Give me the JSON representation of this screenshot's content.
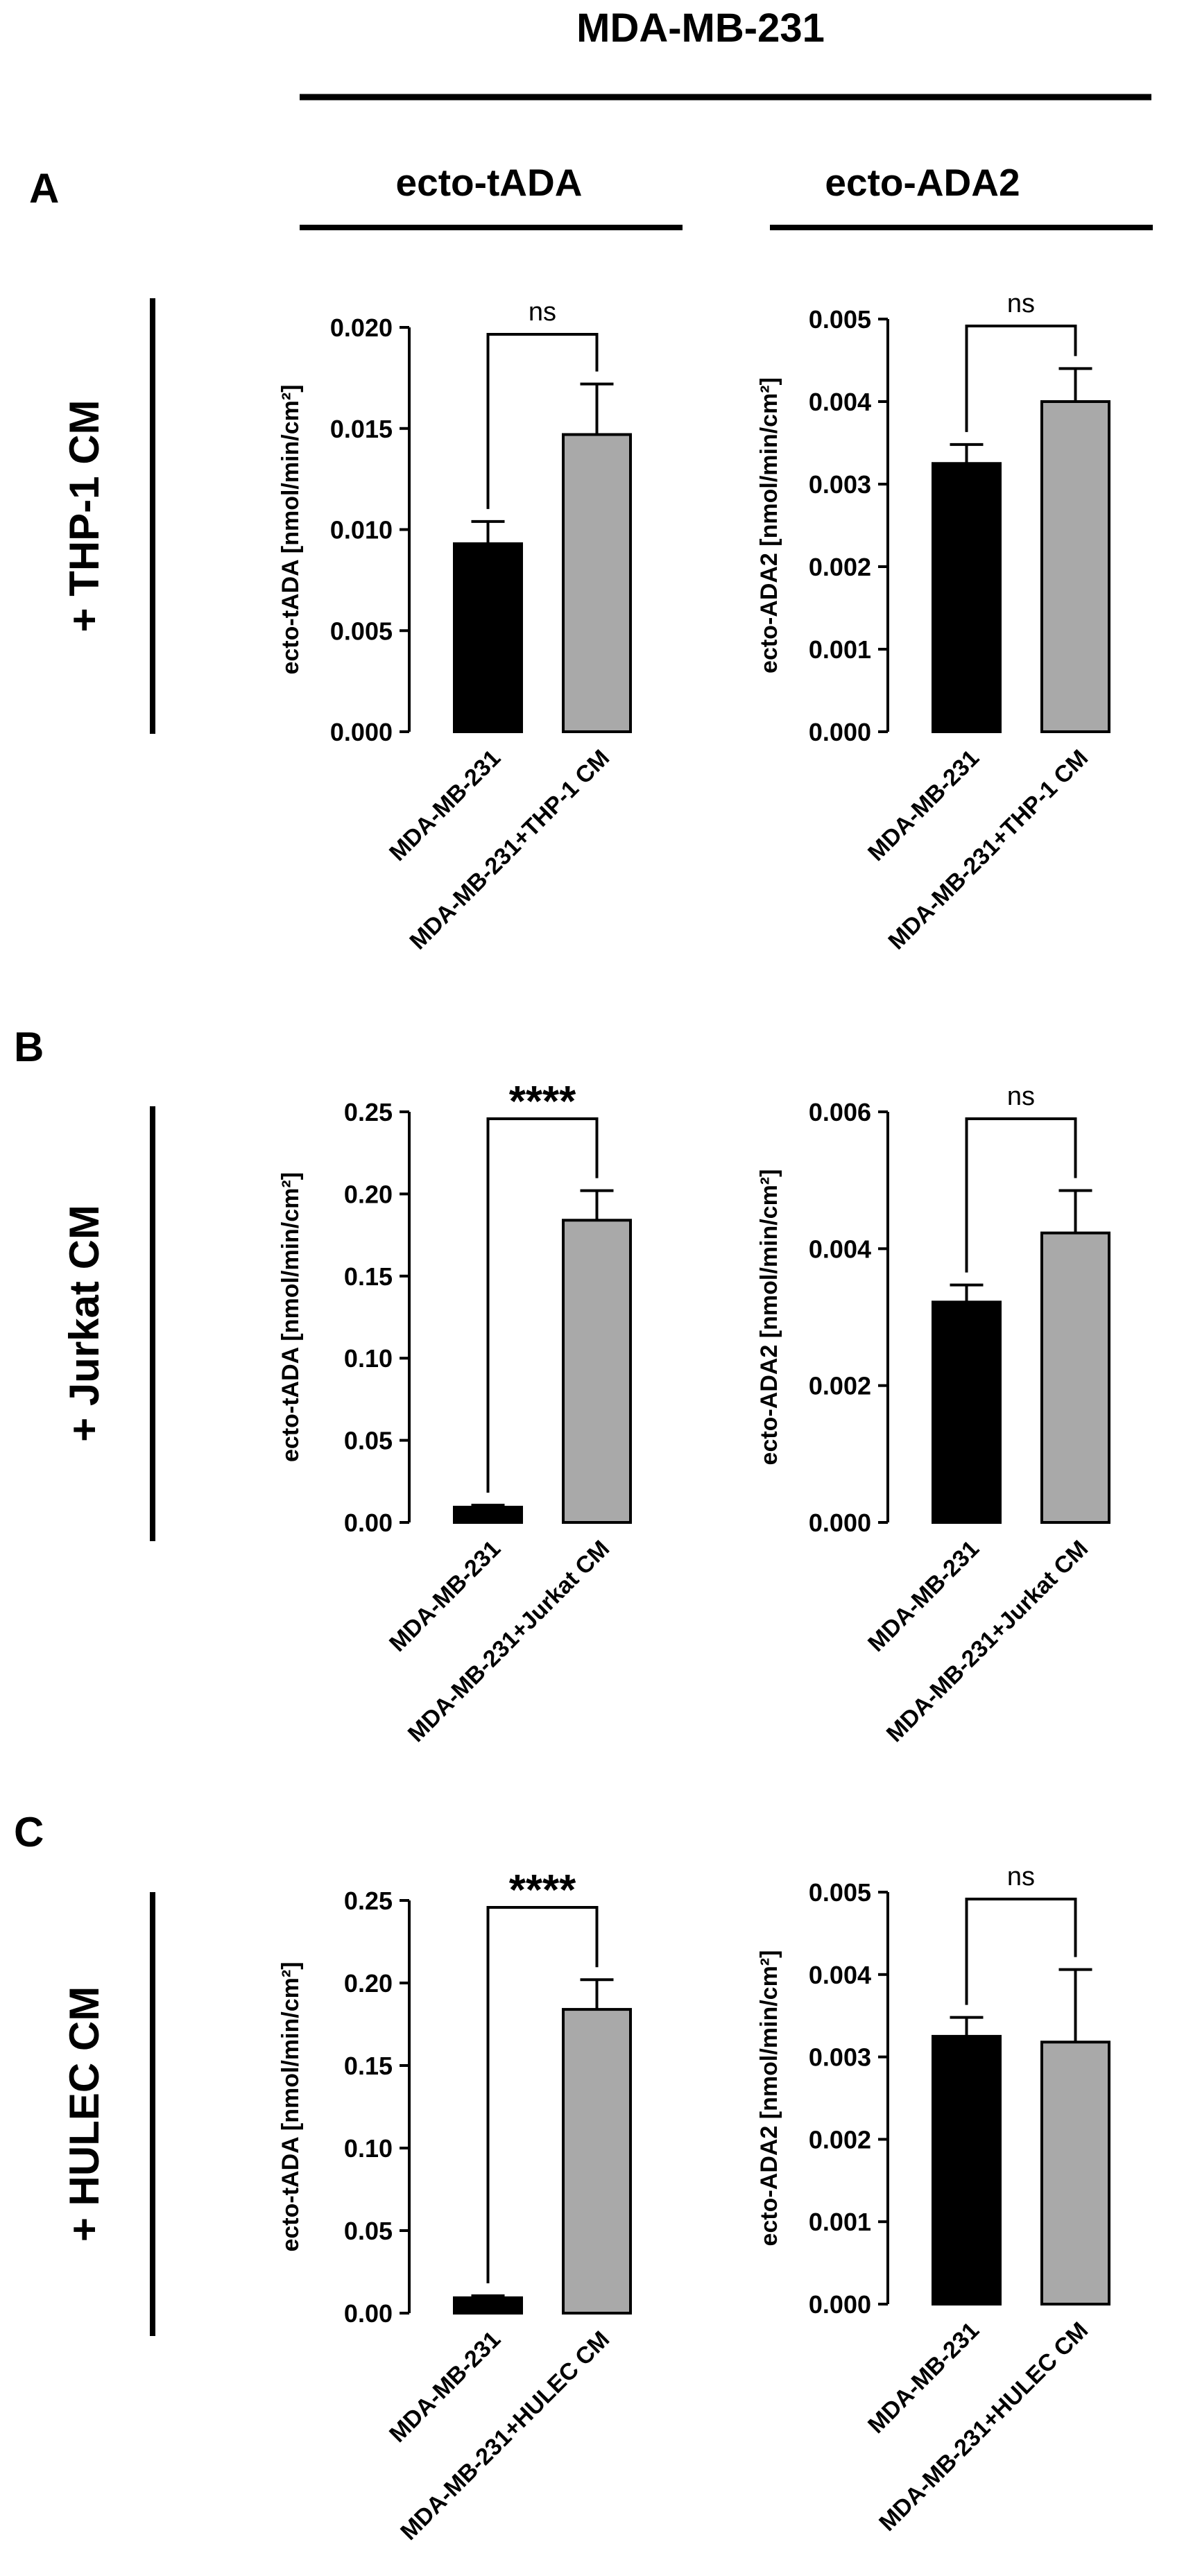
{
  "header": {
    "cell_line": "MDA-MB-231",
    "columns": [
      "ecto-tADA",
      "ecto-ADA2"
    ]
  },
  "rows": [
    {
      "letter": "A",
      "label": "+ THP-1 CM"
    },
    {
      "letter": "B",
      "label": "+ Jurkat CM"
    },
    {
      "letter": "C",
      "label": "+ HULEC CM"
    }
  ],
  "colors": {
    "control_bar": "#000000",
    "treated_bar": "#a9a9a9",
    "line": "#000000"
  },
  "chart_data": [
    {
      "type": "bar",
      "panel": "A",
      "column": "ecto-tADA",
      "ylabel": "ecto-tADA [nmol/min/cm²]",
      "ylim": [
        0,
        0.02
      ],
      "yticks": [
        "0.000",
        "0.005",
        "0.010",
        "0.015",
        "0.020"
      ],
      "categories": [
        "MDA-MB-231",
        "MDA-MB-231+THP-1 CM"
      ],
      "values": [
        0.0093,
        0.0147
      ],
      "errors": [
        0.0011,
        0.0025
      ],
      "significance": "ns"
    },
    {
      "type": "bar",
      "panel": "A",
      "column": "ecto-ADA2",
      "ylabel": "ecto-ADA2 [nmol/min/cm²]",
      "ylim": [
        0,
        0.005
      ],
      "yticks": [
        "0.000",
        "0.001",
        "0.002",
        "0.003",
        "0.004",
        "0.005"
      ],
      "categories": [
        "MDA-MB-231",
        "MDA-MB-231+THP-1 CM"
      ],
      "values": [
        0.00325,
        0.004
      ],
      "errors": [
        0.00023,
        0.0004
      ],
      "significance": "ns"
    },
    {
      "type": "bar",
      "panel": "B",
      "column": "ecto-tADA",
      "ylabel": "ecto-tADA [nmol/min/cm²]",
      "ylim": [
        0,
        0.25
      ],
      "yticks": [
        "0.00",
        "0.05",
        "0.10",
        "0.15",
        "0.20",
        "0.25"
      ],
      "categories": [
        "MDA-MB-231",
        "MDA-MB-231+Jurkat CM"
      ],
      "values": [
        0.0093,
        0.184
      ],
      "errors": [
        0.0012,
        0.018
      ],
      "significance": "****"
    },
    {
      "type": "bar",
      "panel": "B",
      "column": "ecto-ADA2",
      "ylabel": "ecto-ADA2 [nmol/min/cm²]",
      "ylim": [
        0,
        0.006
      ],
      "yticks": [
        "0.000",
        "0.002",
        "0.004",
        "0.006"
      ],
      "categories": [
        "MDA-MB-231",
        "MDA-MB-231+Jurkat CM"
      ],
      "values": [
        0.00322,
        0.00423
      ],
      "errors": [
        0.00025,
        0.00062
      ],
      "significance": "ns"
    },
    {
      "type": "bar",
      "panel": "C",
      "column": "ecto-tADA",
      "ylabel": "ecto-tADA [nmol/min/cm²]",
      "ylim": [
        0,
        0.25
      ],
      "yticks": [
        "0.00",
        "0.05",
        "0.10",
        "0.15",
        "0.20",
        "0.25"
      ],
      "categories": [
        "MDA-MB-231",
        "MDA-MB-231+HULEC CM"
      ],
      "values": [
        0.0093,
        0.184
      ],
      "errors": [
        0.0012,
        0.018
      ],
      "significance": "****"
    },
    {
      "type": "bar",
      "panel": "C",
      "column": "ecto-ADA2",
      "ylabel": "ecto-ADA2 [nmol/min/cm²]",
      "ylim": [
        0,
        0.005
      ],
      "yticks": [
        "0.000",
        "0.001",
        "0.002",
        "0.003",
        "0.004",
        "0.005"
      ],
      "categories": [
        "MDA-MB-231",
        "MDA-MB-231+HULEC CM"
      ],
      "values": [
        0.00325,
        0.00318
      ],
      "errors": [
        0.00023,
        0.00088
      ],
      "significance": "ns"
    }
  ]
}
